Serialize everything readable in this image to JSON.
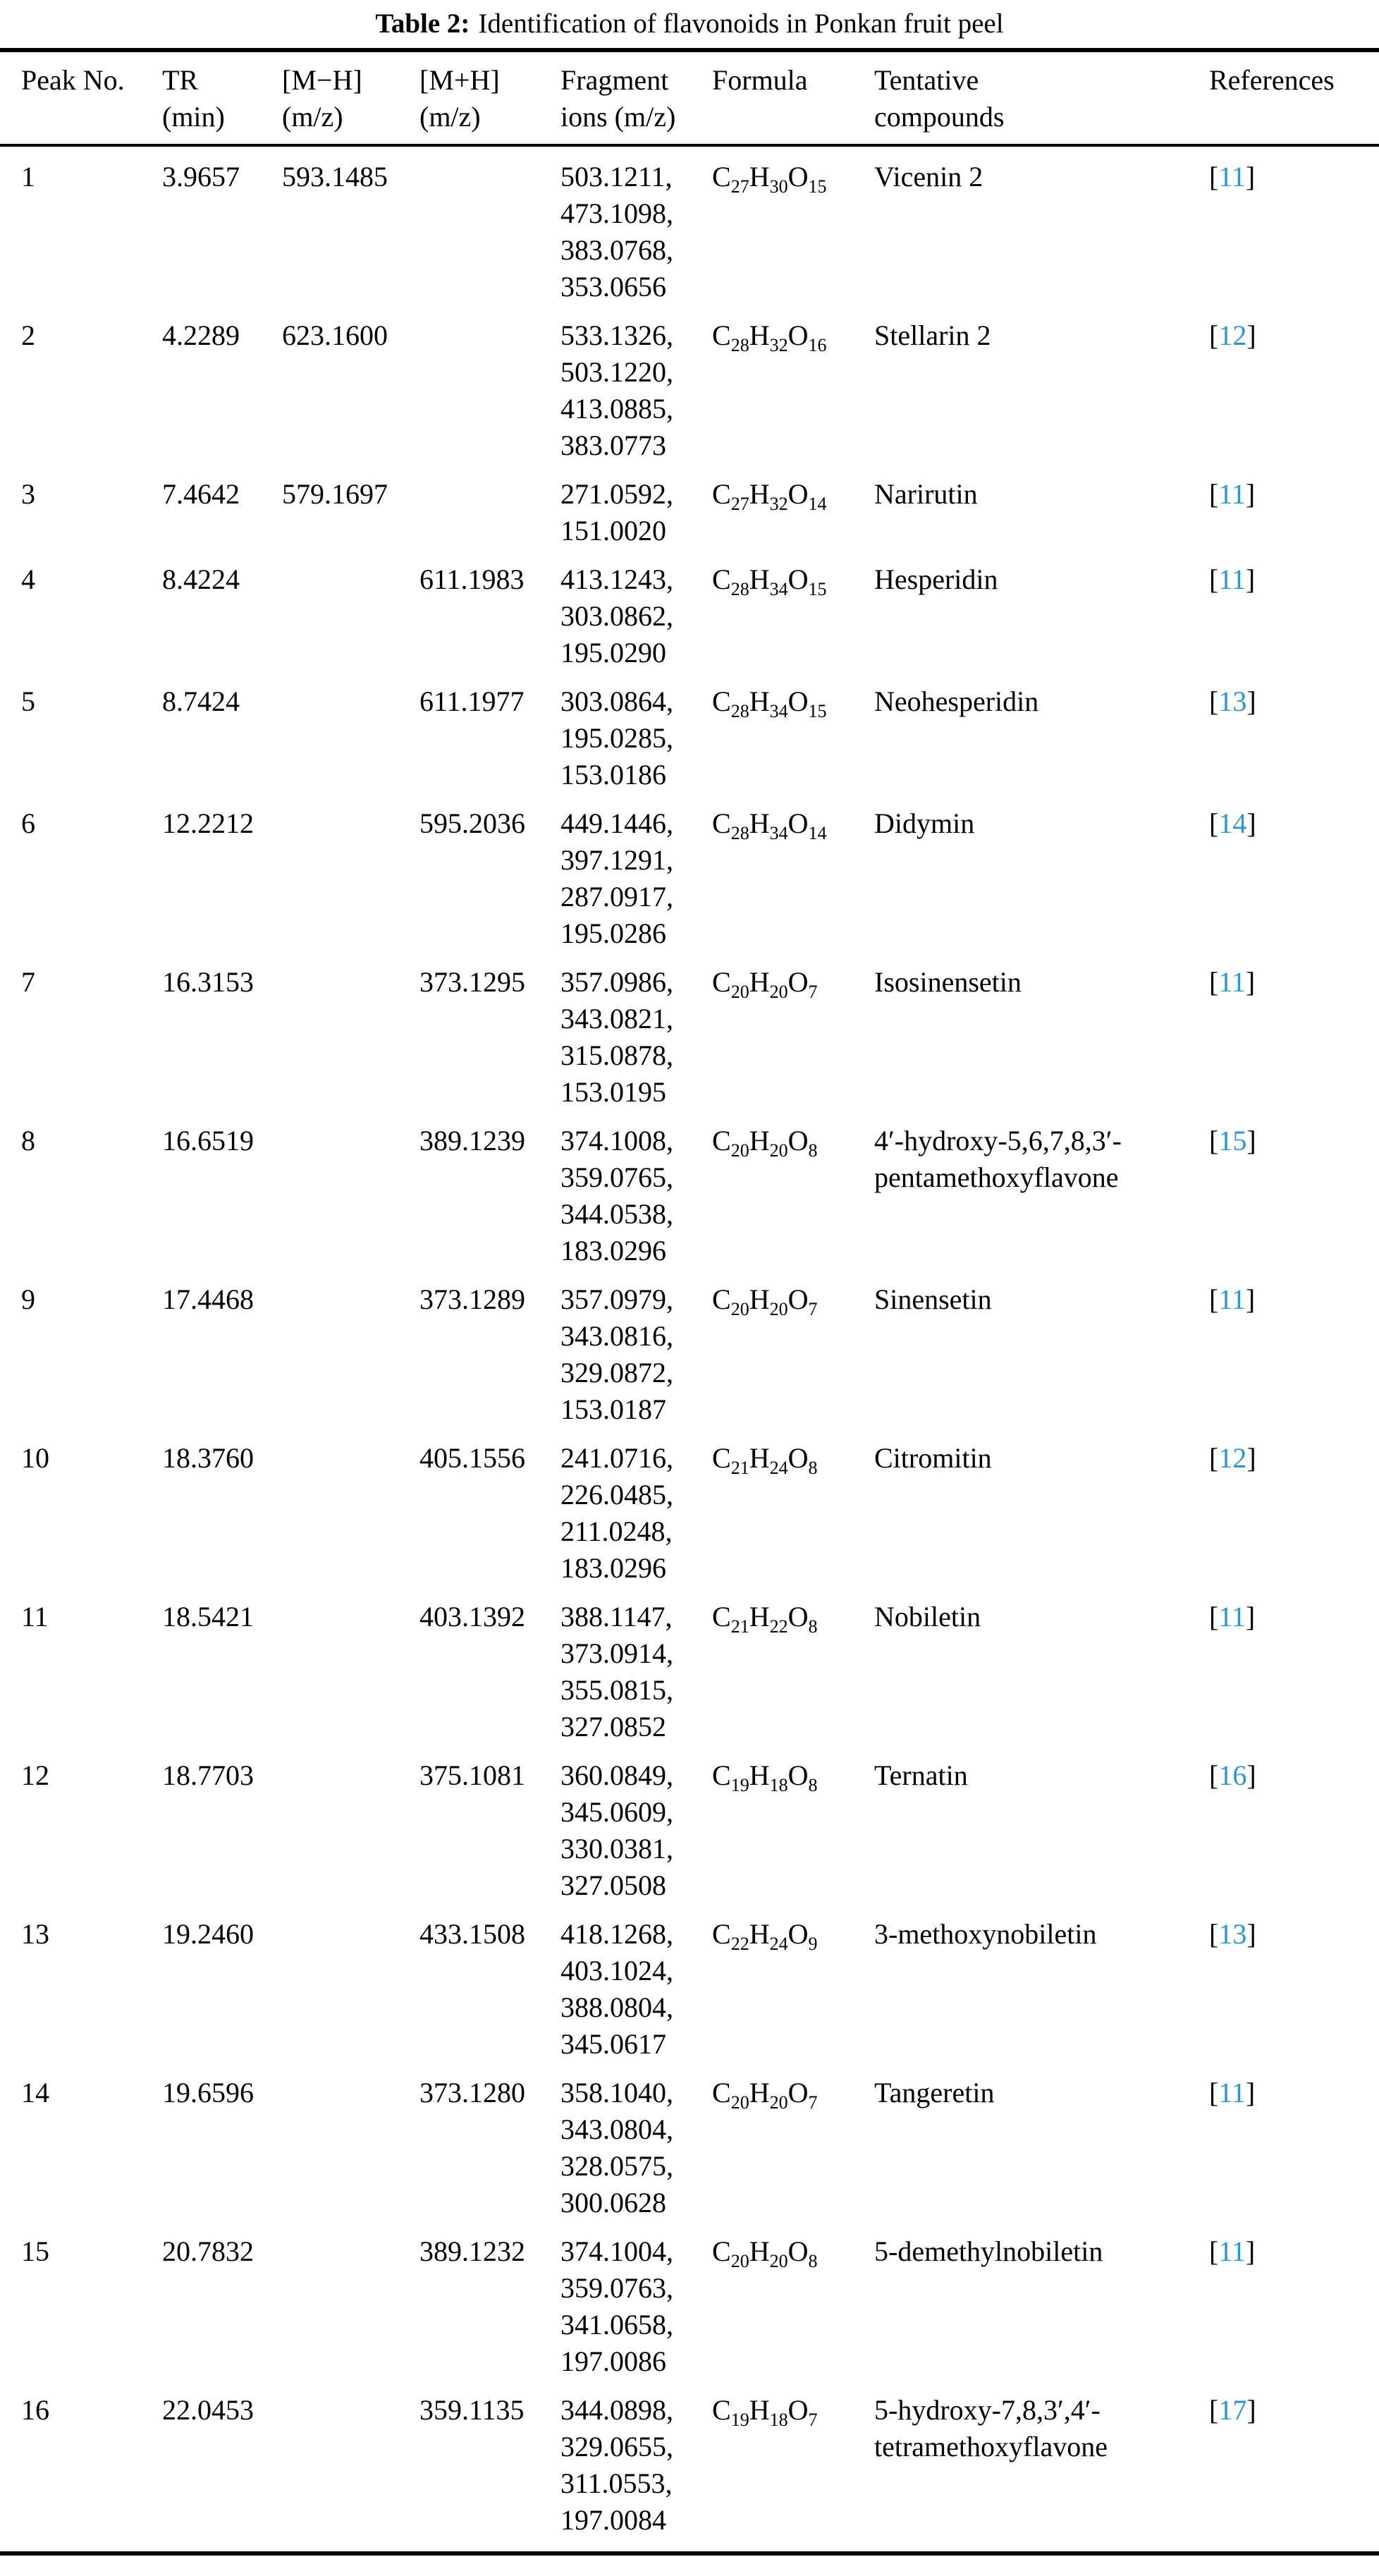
{
  "caption": {
    "label": "Table 2:",
    "text": "Identification of flavonoids in Ponkan fruit peel"
  },
  "colors": {
    "reference_number": "#2a96d2",
    "text": "#000000",
    "background": "#ffffff",
    "rule": "#000000"
  },
  "table": {
    "columns": [
      {
        "id": "peak",
        "line1": "Peak No.",
        "line2": ""
      },
      {
        "id": "tr",
        "line1": "TR",
        "line2": "(min)"
      },
      {
        "id": "mh_neg",
        "line1": "[M−H]",
        "line2": "(m/z)"
      },
      {
        "id": "mh_pos",
        "line1": "[M+H]",
        "line2": "(m/z)"
      },
      {
        "id": "fragments",
        "line1": "Fragment",
        "line2": "ions (m/z)"
      },
      {
        "id": "formula",
        "line1": "Formula",
        "line2": ""
      },
      {
        "id": "compound",
        "line1": "Tentative",
        "line2": "compounds"
      },
      {
        "id": "reference",
        "line1": "References",
        "line2": ""
      }
    ],
    "rows": [
      {
        "peak": "1",
        "tr": "3.9657",
        "mh_neg": "593.1485",
        "mh_pos": "",
        "fragments": [
          "503.1211",
          "473.1098",
          "383.0768",
          "353.0656"
        ],
        "formula": "C27H30O15",
        "compound": "Vicenin 2",
        "reference": "11"
      },
      {
        "peak": "2",
        "tr": "4.2289",
        "mh_neg": "623.1600",
        "mh_pos": "",
        "fragments": [
          "533.1326",
          "503.1220",
          "413.0885",
          "383.0773"
        ],
        "formula": "C28H32O16",
        "compound": "Stellarin 2",
        "reference": "12"
      },
      {
        "peak": "3",
        "tr": "7.4642",
        "mh_neg": "579.1697",
        "mh_pos": "",
        "fragments": [
          "271.0592",
          "151.0020"
        ],
        "formula": "C27H32O14",
        "compound": "Narirutin",
        "reference": "11"
      },
      {
        "peak": "4",
        "tr": "8.4224",
        "mh_neg": "",
        "mh_pos": "611.1983",
        "fragments": [
          "413.1243",
          "303.0862",
          "195.0290"
        ],
        "formula": "C28H34O15",
        "compound": "Hesperidin",
        "reference": "11"
      },
      {
        "peak": "5",
        "tr": "8.7424",
        "mh_neg": "",
        "mh_pos": "611.1977",
        "fragments": [
          "303.0864",
          "195.0285",
          "153.0186"
        ],
        "formula": "C28H34O15",
        "compound": "Neohesperidin",
        "reference": "13"
      },
      {
        "peak": "6",
        "tr": "12.2212",
        "mh_neg": "",
        "mh_pos": "595.2036",
        "fragments": [
          "449.1446",
          "397.1291",
          "287.0917",
          "195.0286"
        ],
        "formula": "C28H34O14",
        "compound": "Didymin",
        "reference": "14"
      },
      {
        "peak": "7",
        "tr": "16.3153",
        "mh_neg": "",
        "mh_pos": "373.1295",
        "fragments": [
          "357.0986",
          "343.0821",
          "315.0878",
          "153.0195"
        ],
        "formula": "C20H20O7",
        "compound": "Isosinensetin",
        "reference": "11"
      },
      {
        "peak": "8",
        "tr": "16.6519",
        "mh_neg": "",
        "mh_pos": "389.1239",
        "fragments": [
          "374.1008",
          "359.0765",
          "344.0538",
          "183.0296"
        ],
        "formula": "C20H20O8",
        "compound": "4′-hydroxy-5,6,7,8,3′-pentamethoxyflavone",
        "reference": "15"
      },
      {
        "peak": "9",
        "tr": "17.4468",
        "mh_neg": "",
        "mh_pos": "373.1289",
        "fragments": [
          "357.0979",
          "343.0816",
          "329.0872",
          "153.0187"
        ],
        "formula": "C20H20O7",
        "compound": "Sinensetin",
        "reference": "11"
      },
      {
        "peak": "10",
        "tr": "18.3760",
        "mh_neg": "",
        "mh_pos": "405.1556",
        "fragments": [
          "241.0716",
          "226.0485",
          "211.0248",
          "183.0296"
        ],
        "formula": "C21H24O8",
        "compound": "Citromitin",
        "reference": "12"
      },
      {
        "peak": "11",
        "tr": "18.5421",
        "mh_neg": "",
        "mh_pos": "403.1392",
        "fragments": [
          "388.1147",
          "373.0914",
          "355.0815",
          "327.0852"
        ],
        "formula": "C21H22O8",
        "compound": "Nobiletin",
        "reference": "11"
      },
      {
        "peak": "12",
        "tr": "18.7703",
        "mh_neg": "",
        "mh_pos": "375.1081",
        "fragments": [
          "360.0849",
          "345.0609",
          "330.0381",
          "327.0508"
        ],
        "formula": "C19H18O8",
        "compound": "Ternatin",
        "reference": "16"
      },
      {
        "peak": "13",
        "tr": "19.2460",
        "mh_neg": "",
        "mh_pos": "433.1508",
        "fragments": [
          "418.1268",
          "403.1024",
          "388.0804",
          "345.0617"
        ],
        "formula": "C22H24O9",
        "compound": "3-methoxynobiletin",
        "reference": "13"
      },
      {
        "peak": "14",
        "tr": "19.6596",
        "mh_neg": "",
        "mh_pos": "373.1280",
        "fragments": [
          "358.1040",
          "343.0804",
          "328.0575",
          "300.0628"
        ],
        "formula": "C20H20O7",
        "compound": "Tangeretin",
        "reference": "11"
      },
      {
        "peak": "15",
        "tr": "20.7832",
        "mh_neg": "",
        "mh_pos": "389.1232",
        "fragments": [
          "374.1004",
          "359.0763",
          "341.0658",
          "197.0086"
        ],
        "formula": "C20H20O8",
        "compound": "5-demethylnobiletin",
        "reference": "11"
      },
      {
        "peak": "16",
        "tr": "22.0453",
        "mh_neg": "",
        "mh_pos": "359.1135",
        "fragments": [
          "344.0898",
          "329.0655",
          "311.0553",
          "197.0084"
        ],
        "formula": "C19H18O7",
        "compound": "5-hydroxy-7,8,3′,4′-tetramethoxyflavone",
        "reference": "17"
      }
    ]
  }
}
